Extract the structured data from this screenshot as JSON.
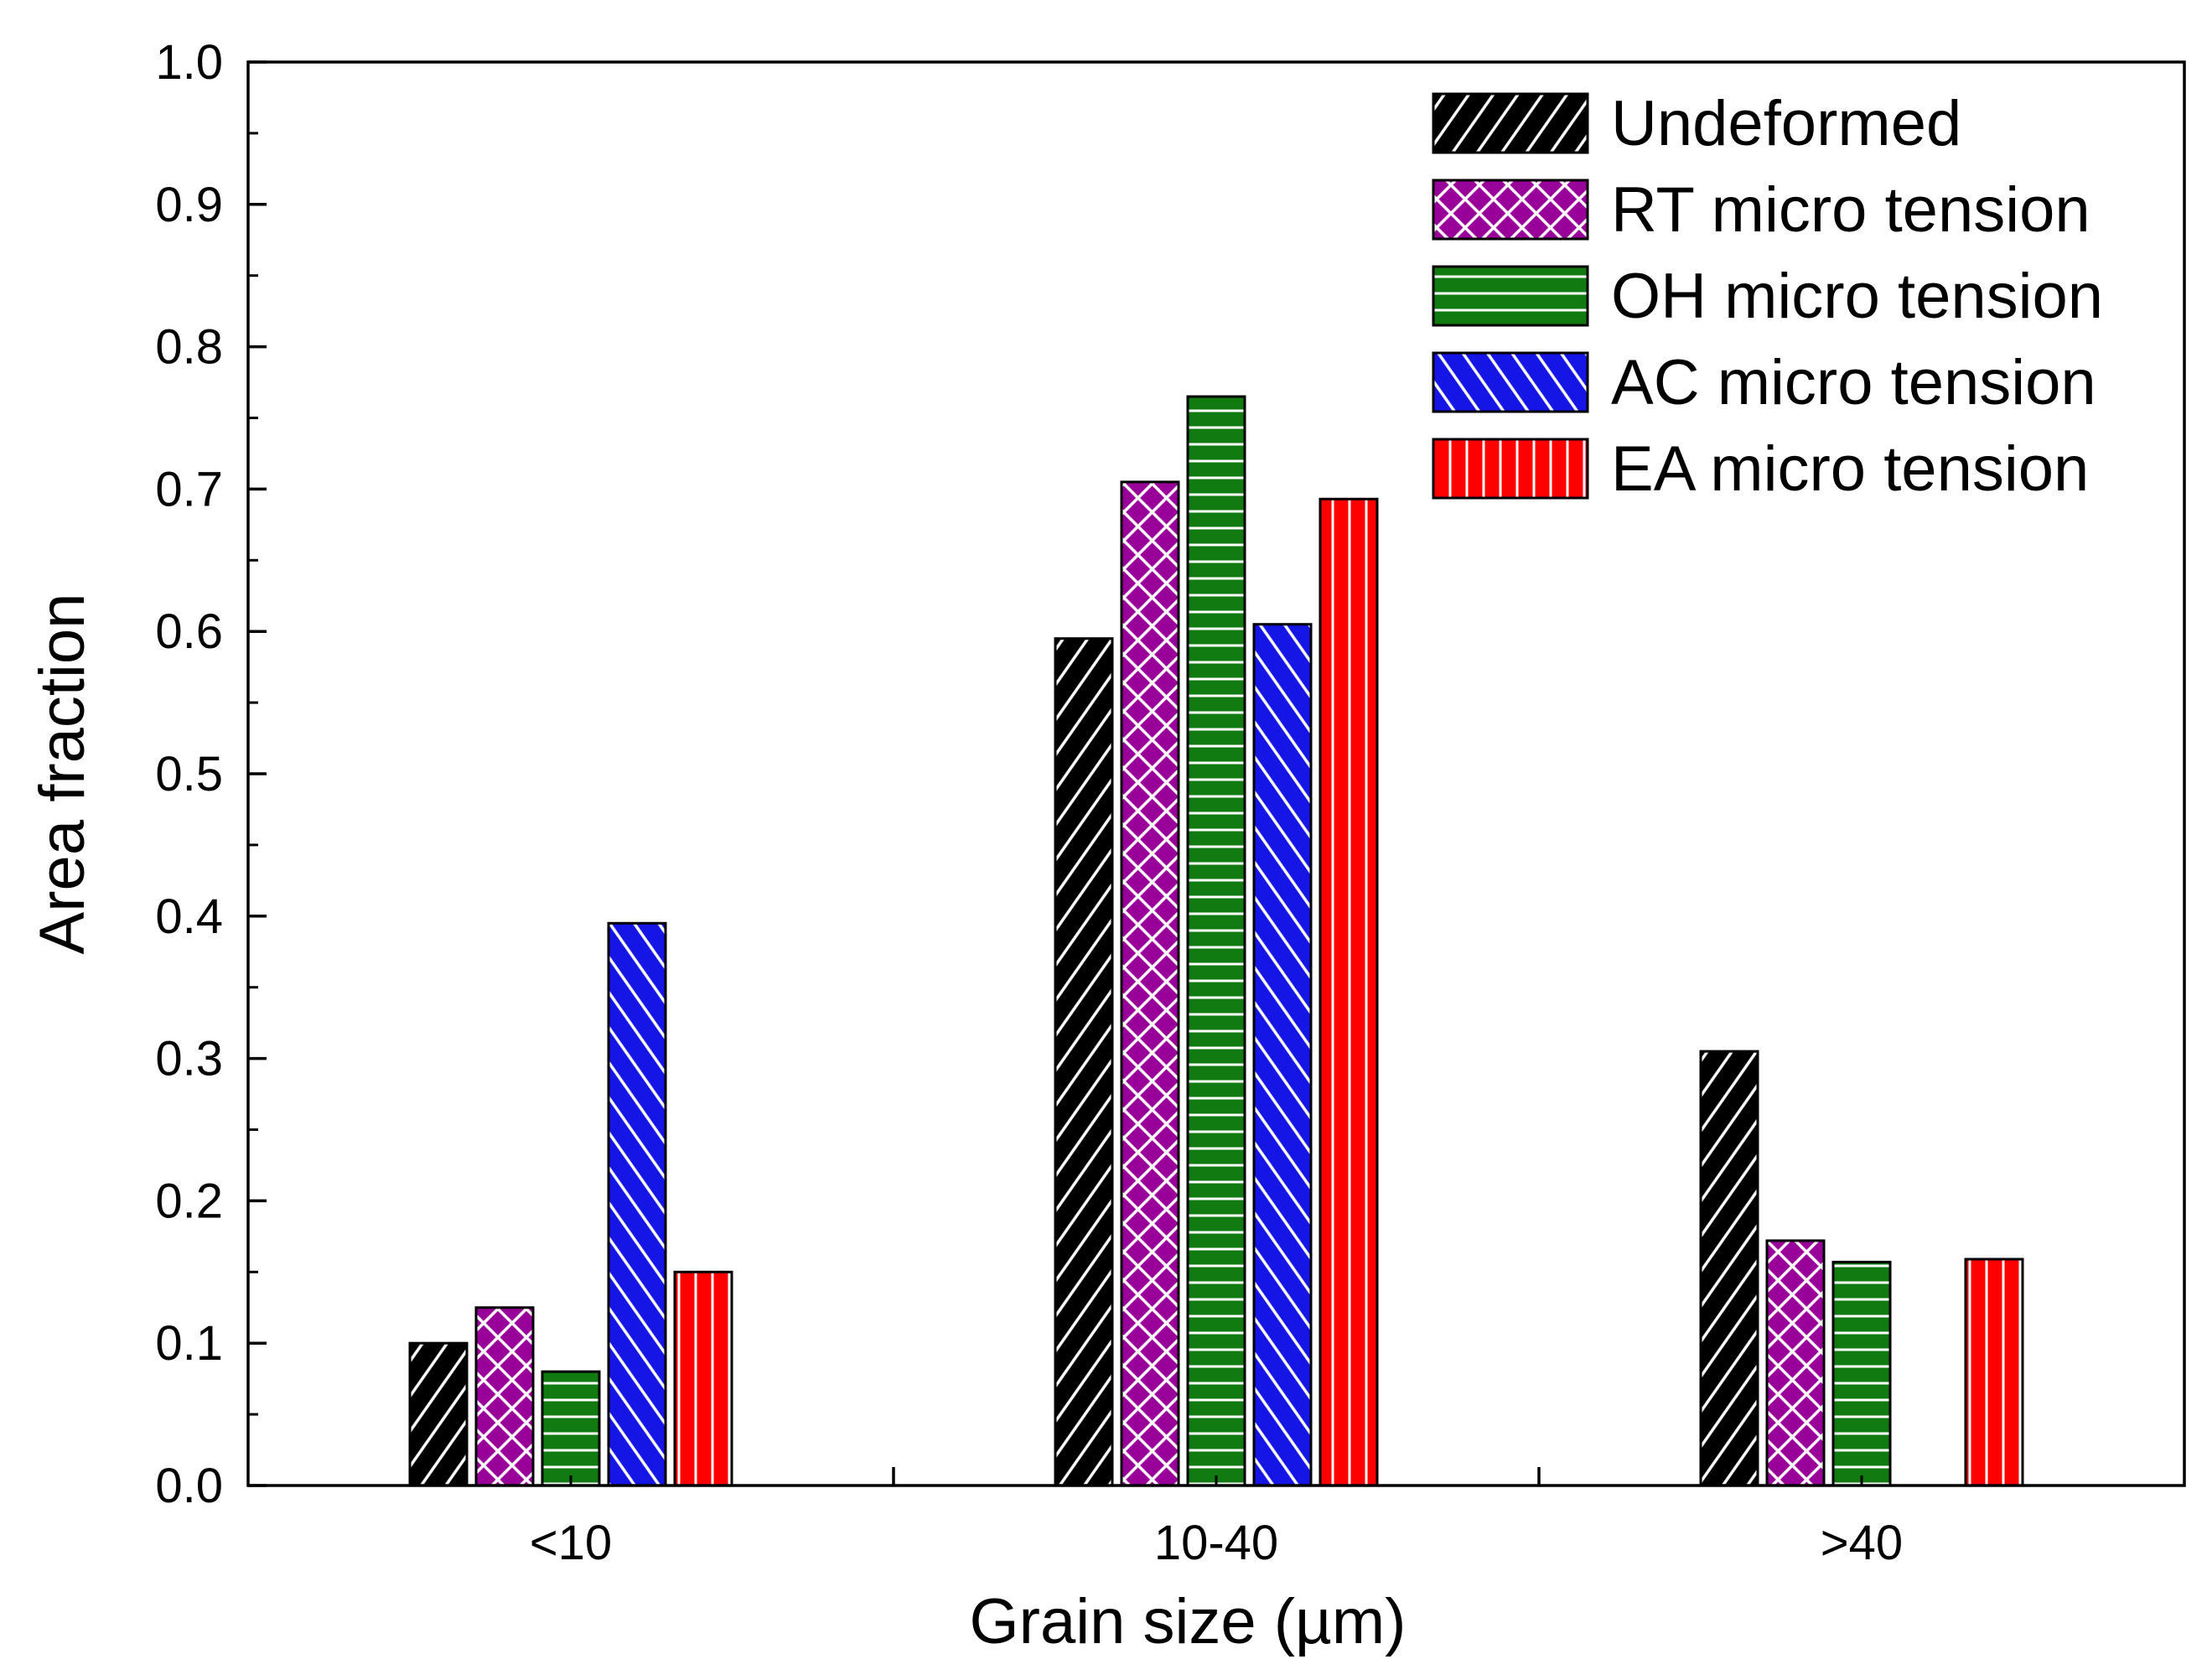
{
  "chart_data": {
    "type": "bar",
    "title": "",
    "xlabel": "Grain size (µm)",
    "ylabel": "Area fraction",
    "categories": [
      "<10",
      "10-40",
      ">40"
    ],
    "ylim": [
      0,
      1.0
    ],
    "yticks": [
      "0.0",
      "0.1",
      "0.2",
      "0.3",
      "0.4",
      "0.5",
      "0.6",
      "0.7",
      "0.8",
      "0.9",
      "1.0"
    ],
    "grid": false,
    "legend_position": "top-right",
    "series": [
      {
        "name": "Undeformed",
        "color": "#000000",
        "pattern": "diagonal-hatch",
        "values": [
          0.1,
          0.595,
          0.305
        ]
      },
      {
        "name": "RT micro tension",
        "color": "#990099",
        "pattern": "crosshatch",
        "values": [
          0.125,
          0.705,
          0.172
        ]
      },
      {
        "name": "OH micro tension",
        "color": "#117a11",
        "pattern": "horizontal-lines",
        "values": [
          0.08,
          0.765,
          0.157
        ]
      },
      {
        "name": "AC micro tension",
        "color": "#1515e6",
        "pattern": "back-diagonal-hatch",
        "values": [
          0.395,
          0.605,
          null
        ]
      },
      {
        "name": "EA micro tension",
        "color": "#ff0000",
        "pattern": "vertical-lines",
        "values": [
          0.15,
          0.693,
          0.159
        ]
      }
    ]
  }
}
